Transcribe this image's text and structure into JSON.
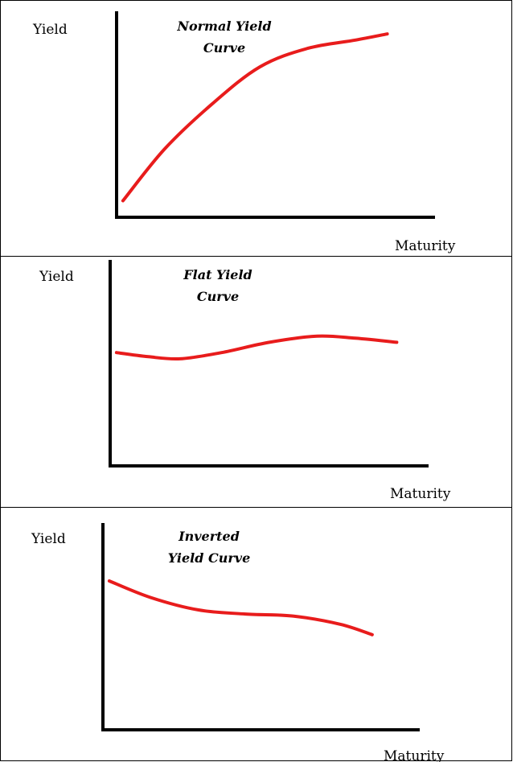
{
  "chart_data": [
    {
      "type": "line",
      "title": [
        "Normal Yield",
        "Curve"
      ],
      "xlabel": "Maturity",
      "ylabel": "Yield",
      "series": [
        {
          "color": "#e81c1c",
          "points": [
            [
              0.02,
              0.08
            ],
            [
              0.15,
              0.33
            ],
            [
              0.3,
              0.55
            ],
            [
              0.45,
              0.73
            ],
            [
              0.6,
              0.82
            ],
            [
              0.75,
              0.86
            ],
            [
              0.85,
              0.89
            ]
          ]
        }
      ]
    },
    {
      "type": "line",
      "title": [
        "Flat Yield",
        "Curve"
      ],
      "xlabel": "Maturity",
      "ylabel": "Yield",
      "series": [
        {
          "color": "#e81c1c",
          "points": [
            [
              0.02,
              0.55
            ],
            [
              0.12,
              0.53
            ],
            [
              0.22,
              0.52
            ],
            [
              0.35,
              0.55
            ],
            [
              0.5,
              0.6
            ],
            [
              0.65,
              0.63
            ],
            [
              0.77,
              0.62
            ],
            [
              0.9,
              0.6
            ]
          ]
        }
      ]
    },
    {
      "type": "line",
      "title": [
        "Inverted",
        "Yield Curve"
      ],
      "xlabel": "Maturity",
      "ylabel": "Yield",
      "series": [
        {
          "color": "#e81c1c",
          "points": [
            [
              0.02,
              0.72
            ],
            [
              0.15,
              0.64
            ],
            [
              0.3,
              0.58
            ],
            [
              0.45,
              0.56
            ],
            [
              0.6,
              0.55
            ],
            [
              0.75,
              0.51
            ],
            [
              0.85,
              0.46
            ]
          ]
        }
      ]
    }
  ]
}
